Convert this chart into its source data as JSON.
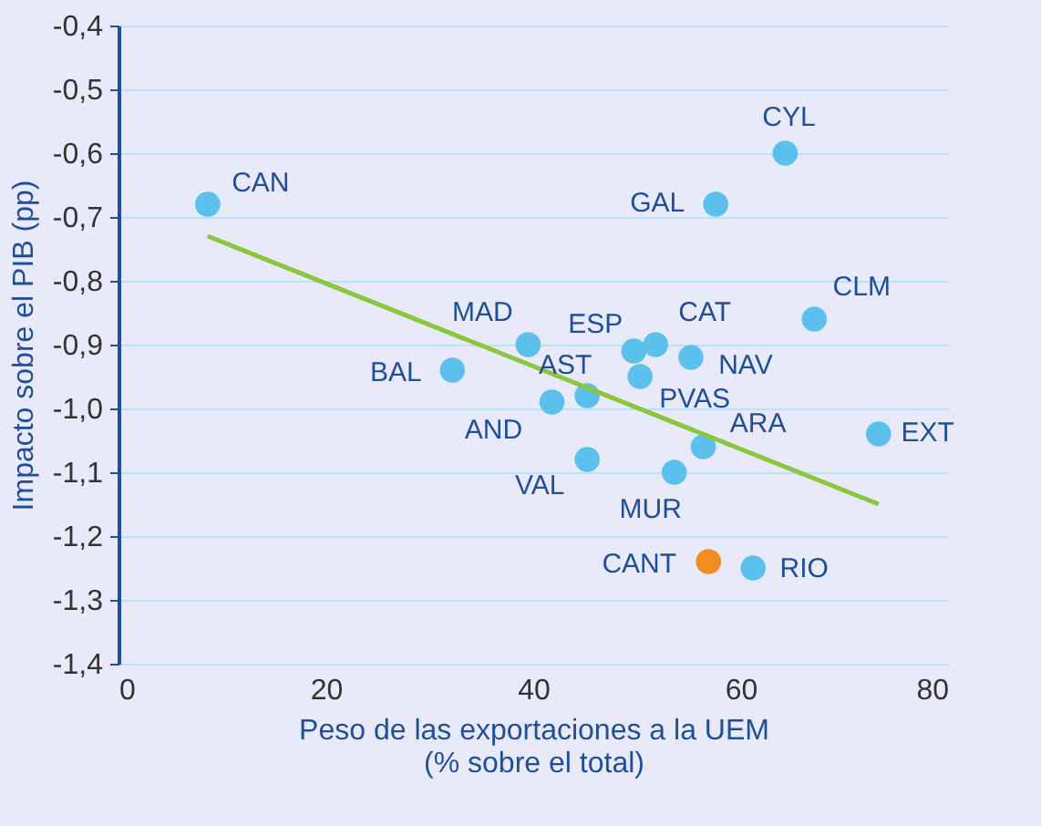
{
  "chart_data": {
    "type": "scatter",
    "xlabel": "Peso de las exportaciones a la UEM\n(% sobre el total)",
    "ylabel": "Impacto sobre el PIB (pp)",
    "xlim": [
      0,
      80
    ],
    "xticks": [
      0,
      20,
      40,
      60,
      80
    ],
    "ylim": [
      -1.4,
      -0.4
    ],
    "yticks": [
      {
        "value": -1.4,
        "label": "-1,4"
      },
      {
        "value": -1.3,
        "label": "-1,3"
      },
      {
        "value": -1.2,
        "label": "-1,2"
      },
      {
        "value": -1.1,
        "label": "-1,1"
      },
      {
        "value": -1.0,
        "label": "-1,0"
      },
      {
        "value": -0.9,
        "label": "-0,9"
      },
      {
        "value": -0.8,
        "label": "-0,8"
      },
      {
        "value": -0.7,
        "label": "-0,7"
      },
      {
        "value": -0.6,
        "label": "-0,6"
      },
      {
        "value": -0.5,
        "label": "-0,5"
      },
      {
        "value": -0.4,
        "label": "-0,4"
      }
    ],
    "grid": "y",
    "marker": "circle",
    "series": [
      {
        "x": [
          8.6,
          64.3,
          57.6,
          39.5,
          32.2,
          49.7,
          51.8,
          55.2,
          67.1,
          45.2,
          50.3,
          41.8,
          56.4,
          73.3,
          45.2,
          53.6,
          56.9,
          61.2
        ],
        "values": [
          -0.68,
          -0.6,
          -0.68,
          -0.9,
          -0.94,
          -0.91,
          -0.9,
          -0.92,
          -0.86,
          -0.98,
          -0.95,
          -0.99,
          -1.06,
          -1.04,
          -1.08,
          -1.1,
          -1.24,
          -1.25
        ],
        "colors": [
          "#5bc0eb",
          "#5bc0eb",
          "#5bc0eb",
          "#5bc0eb",
          "#5bc0eb",
          "#5bc0eb",
          "#5bc0eb",
          "#5bc0eb",
          "#5bc0eb",
          "#5bc0eb",
          "#5bc0eb",
          "#5bc0eb",
          "#5bc0eb",
          "#5bc0eb",
          "#5bc0eb",
          "#5bc0eb",
          "#f28c1e",
          "#5bc0eb"
        ]
      },
      {
        "type": "line",
        "x": [
          8.6,
          73.3
        ],
        "values": [
          -0.73,
          -1.15
        ],
        "color": "#8cc63f",
        "marker": "none"
      }
    ],
    "annotations": [
      {
        "text": "CAN",
        "x": 8.6,
        "y": -0.68
      },
      {
        "text": "CYL",
        "x": 64.3,
        "y": -0.6
      },
      {
        "text": "GAL",
        "x": 57.6,
        "y": -0.68
      },
      {
        "text": "MAD",
        "x": 39.5,
        "y": -0.9
      },
      {
        "text": "BAL",
        "x": 32.2,
        "y": -0.94
      },
      {
        "text": "ESP",
        "x": 49.7,
        "y": -0.91
      },
      {
        "text": "CAT",
        "x": 51.8,
        "y": -0.9
      },
      {
        "text": "NAV",
        "x": 55.2,
        "y": -0.92
      },
      {
        "text": "CLM",
        "x": 67.1,
        "y": -0.86
      },
      {
        "text": "AST",
        "x": 45.2,
        "y": -0.98
      },
      {
        "text": "PVAS",
        "x": 50.3,
        "y": -0.95
      },
      {
        "text": "AND",
        "x": 41.8,
        "y": -0.99
      },
      {
        "text": "ARA",
        "x": 56.4,
        "y": -1.06
      },
      {
        "text": "EXT",
        "x": 73.3,
        "y": -1.04
      },
      {
        "text": "VAL",
        "x": 45.2,
        "y": -1.08
      },
      {
        "text": "MUR",
        "x": 53.6,
        "y": -1.1
      },
      {
        "text": "CANT",
        "x": 56.9,
        "y": -1.24
      },
      {
        "text": "RIO",
        "x": 61.2,
        "y": -1.25
      }
    ]
  }
}
